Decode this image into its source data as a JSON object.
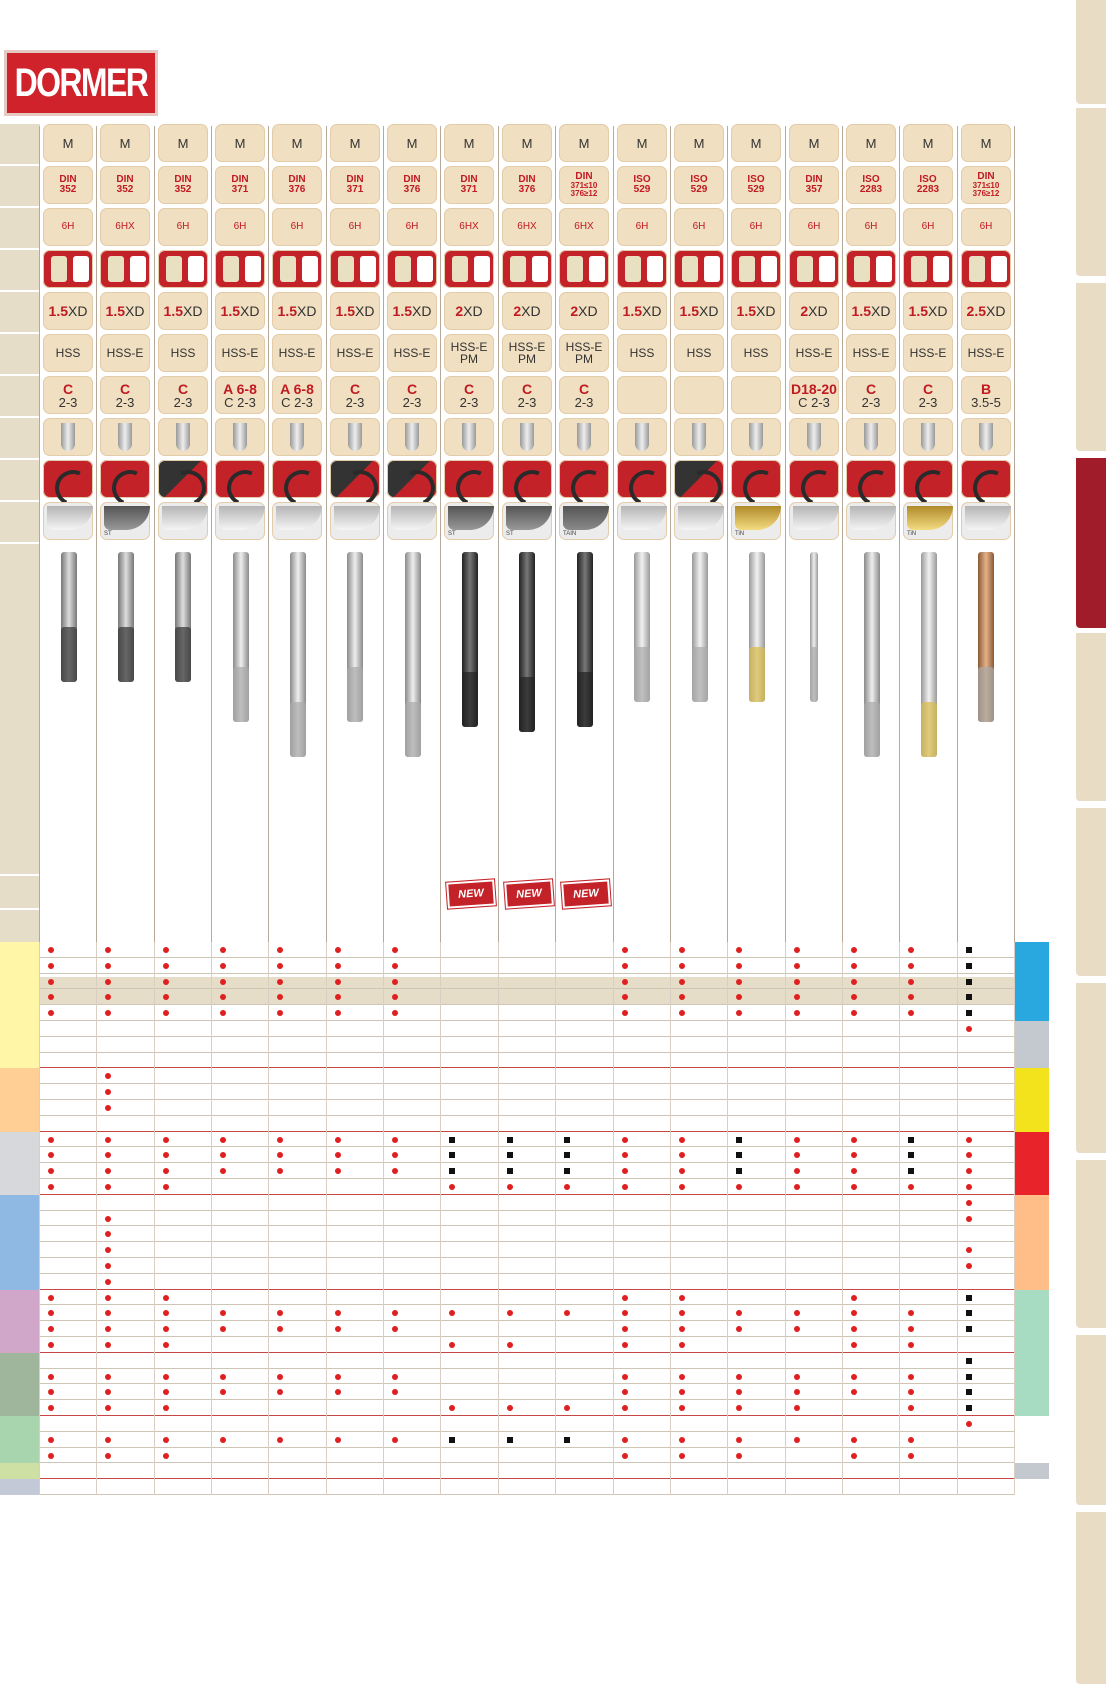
{
  "brand": {
    "logo_text": "DORMER",
    "color": "#d0222a"
  },
  "columns": [
    {
      "type": "M",
      "std": [
        "DIN",
        "352"
      ],
      "tol": "6H",
      "bore": "1.5",
      "mat": "HSS",
      "cls": [
        "C",
        "2-3"
      ],
      "dir": "R",
      "coat": "bright",
      "coat_label": "",
      "tap": "short-dark",
      "is_new": false
    },
    {
      "type": "M",
      "std": [
        "DIN",
        "352"
      ],
      "tol": "6HX",
      "bore": "1.5",
      "mat": "HSS-E",
      "cls": [
        "C",
        "2-3"
      ],
      "dir": "R",
      "coat": "dark",
      "coat_label": "ST",
      "tap": "short-dark",
      "is_new": false
    },
    {
      "type": "M",
      "std": [
        "DIN",
        "352"
      ],
      "tol": "6H",
      "bore": "1.5",
      "mat": "HSS",
      "cls": [
        "C",
        "2-3"
      ],
      "dir": "L",
      "coat": "bright",
      "coat_label": "",
      "tap": "short-dark",
      "is_new": false
    },
    {
      "type": "M",
      "std": [
        "DIN",
        "371"
      ],
      "tol": "6H",
      "bore": "1.5",
      "mat": "HSS-E",
      "cls": [
        "A 6-8",
        "C 2-3"
      ],
      "dir": "R",
      "coat": "bright",
      "coat_label": "",
      "tap": "long",
      "is_new": false
    },
    {
      "type": "M",
      "std": [
        "DIN",
        "376"
      ],
      "tol": "6H",
      "bore": "1.5",
      "mat": "HSS-E",
      "cls": [
        "A 6-8",
        "C 2-3"
      ],
      "dir": "R",
      "coat": "bright",
      "coat_label": "",
      "tap": "xlong",
      "is_new": false
    },
    {
      "type": "M",
      "std": [
        "DIN",
        "371"
      ],
      "tol": "6H",
      "bore": "1.5",
      "mat": "HSS-E",
      "cls": [
        "C",
        "2-3"
      ],
      "dir": "L",
      "coat": "bright",
      "coat_label": "",
      "tap": "long",
      "is_new": false
    },
    {
      "type": "M",
      "std": [
        "DIN",
        "376"
      ],
      "tol": "6H",
      "bore": "1.5",
      "mat": "HSS-E",
      "cls": [
        "C",
        "2-3"
      ],
      "dir": "L",
      "coat": "bright",
      "coat_label": "",
      "tap": "xlong",
      "is_new": false
    },
    {
      "type": "M",
      "std": [
        "DIN",
        "371"
      ],
      "tol": "6HX",
      "bore": "2",
      "mat": "HSS-E PM",
      "cls": [
        "C",
        "2-3"
      ],
      "dir": "R",
      "coat": "dark",
      "coat_label": "ST",
      "tap": "long-dark",
      "is_new": true
    },
    {
      "type": "M",
      "std": [
        "DIN",
        "376"
      ],
      "tol": "6HX",
      "bore": "2",
      "mat": "HSS-E PM",
      "cls": [
        "C",
        "2-3"
      ],
      "dir": "R",
      "coat": "dark",
      "coat_label": "ST",
      "tap": "xlong-dark",
      "is_new": true
    },
    {
      "type": "M",
      "std": [
        "DIN",
        "371≤10 376≥12"
      ],
      "tol": "6HX",
      "bore": "2",
      "mat": "HSS-E PM",
      "cls": [
        "C",
        "2-3"
      ],
      "dir": "R",
      "coat": "tain",
      "coat_label": "TAIN",
      "tap": "long-dark",
      "is_new": true
    },
    {
      "type": "M",
      "std": [
        "ISO",
        "529"
      ],
      "tol": "6H",
      "bore": "1.5",
      "mat": "HSS",
      "cls": [
        "",
        ""
      ],
      "dir": "R",
      "coat": "bright",
      "coat_label": "",
      "tap": "med",
      "is_new": false
    },
    {
      "type": "M",
      "std": [
        "ISO",
        "529"
      ],
      "tol": "6H",
      "bore": "1.5",
      "mat": "HSS",
      "cls": [
        "",
        ""
      ],
      "dir": "L",
      "coat": "bright",
      "coat_label": "",
      "tap": "med",
      "is_new": false
    },
    {
      "type": "M",
      "std": [
        "ISO",
        "529"
      ],
      "tol": "6H",
      "bore": "1.5",
      "mat": "HSS",
      "cls": [
        "",
        ""
      ],
      "dir": "R",
      "coat": "gold",
      "coat_label": "TiN",
      "tap": "med-gold",
      "is_new": false
    },
    {
      "type": "M",
      "std": [
        "DIN",
        "357"
      ],
      "tol": "6H",
      "bore": "2",
      "mat": "HSS-E",
      "cls": [
        "D18-20",
        "C 2-3"
      ],
      "dir": "R",
      "coat": "bright",
      "coat_label": "",
      "tap": "thin",
      "is_new": false
    },
    {
      "type": "M",
      "std": [
        "ISO",
        "2283"
      ],
      "tol": "6H",
      "bore": "1.5",
      "mat": "HSS-E",
      "cls": [
        "C",
        "2-3"
      ],
      "dir": "R",
      "coat": "bright",
      "coat_label": "",
      "tap": "xlong",
      "is_new": false
    },
    {
      "type": "M",
      "std": [
        "ISO",
        "2283"
      ],
      "tol": "6H",
      "bore": "1.5",
      "mat": "HSS-E",
      "cls": [
        "C",
        "2-3"
      ],
      "dir": "R",
      "coat": "gold",
      "coat_label": "TiN",
      "tap": "xlong-gold",
      "is_new": false
    },
    {
      "type": "M",
      "std": [
        "DIN",
        "371≤10 376≥12"
      ],
      "tol": "6H",
      "bore": "2.5",
      "mat": "HSS-E",
      "cls": [
        "B",
        "3.5-5"
      ],
      "dir": "R",
      "coat": "bright",
      "coat_label": "",
      "tap": "long-copper",
      "is_new": false
    }
  ],
  "header_row_tops": [
    124,
    166,
    208,
    250,
    292,
    334,
    376,
    418,
    460,
    502
  ],
  "new_badge_text": "NEW",
  "xd_unit": "XD",
  "matrix": [
    {
      "c": "#fff6a8",
      "r": "#29a7df",
      "m": "ooooooo---oooooos"
    },
    {
      "c": "#fff6a8",
      "r": "#29a7df",
      "m": "ooooooo---oooooos"
    },
    {
      "c": "#fff6a8",
      "r": "#29a7df",
      "m": "ooooooo---oooooos"
    },
    {
      "c": "#fff6a8",
      "r": "#29a7df",
      "m": "ooooooo---oooooos"
    },
    {
      "c": "#fff6a8",
      "r": "#29a7df",
      "m": "ooooooo---oooooos"
    },
    {
      "c": "#fff6a8",
      "r": "#c4c9cf",
      "m": "----------------o"
    },
    {
      "c": "#fff6a8",
      "r": "#c4c9cf",
      "m": "-----------------"
    },
    {
      "c": "#fff6a8",
      "r": "#c4c9cf",
      "m": "-----------------",
      "line": "red"
    },
    {
      "c": "#ffcf96",
      "r": "#f3e31d",
      "m": "-o---------------"
    },
    {
      "c": "#ffcf96",
      "r": "#f3e31d",
      "m": "-o---------------"
    },
    {
      "c": "#ffcf96",
      "r": "#f3e31d",
      "m": "-o---------------"
    },
    {
      "c": "#ffcf96",
      "r": "#f3e31d",
      "m": "-----------------",
      "line": "red"
    },
    {
      "c": "#d6d8dc",
      "r": "#e8242a",
      "m": "ooooooosssoosooso"
    },
    {
      "c": "#d6d8dc",
      "r": "#e8242a",
      "m": "ooooooosssoosooso"
    },
    {
      "c": "#d6d8dc",
      "r": "#e8242a",
      "m": "ooooooosssoosooso"
    },
    {
      "c": "#d6d8dc",
      "r": "#e8242a",
      "m": "ooo----oooooooooo",
      "line": "red"
    },
    {
      "c": "#8fb8e2",
      "r": "#ffbe88",
      "m": "----------------o"
    },
    {
      "c": "#8fb8e2",
      "r": "#ffbe88",
      "m": "-o--------------o"
    },
    {
      "c": "#8fb8e2",
      "r": "#ffbe88",
      "m": "-o---------------"
    },
    {
      "c": "#8fb8e2",
      "r": "#ffbe88",
      "m": "-o--------------o"
    },
    {
      "c": "#8fb8e2",
      "r": "#ffbe88",
      "m": "-o--------------o"
    },
    {
      "c": "#8fb8e2",
      "r": "#ffbe88",
      "m": "-o---------------",
      "line": "red"
    },
    {
      "c": "#d0a7c8",
      "r": "#a7dcc3",
      "m": "ooo-------oo--o-s"
    },
    {
      "c": "#d0a7c8",
      "r": "#a7dcc3",
      "m": "oooooooooooooooos"
    },
    {
      "c": "#d0a7c8",
      "r": "#a7dcc3",
      "m": "ooooooo---oooooos"
    },
    {
      "c": "#d0a7c8",
      "r": "#a7dcc3",
      "m": "ooo----oo-oo--oo-",
      "line": "red"
    },
    {
      "c": "#9fb69d",
      "r": "#a7dcc3",
      "m": "----------------s"
    },
    {
      "c": "#9fb69d",
      "r": "#a7dcc3",
      "m": "ooooooo---oooooos"
    },
    {
      "c": "#9fb69d",
      "r": "#a7dcc3",
      "m": "ooooooo---oooooos"
    },
    {
      "c": "#9fb69d",
      "r": "#a7dcc3",
      "m": "ooo----ooooooo-os",
      "line": "red"
    },
    {
      "c": "#a9d5ae",
      "r": "#ffffff",
      "m": "----------------o"
    },
    {
      "c": "#a9d5ae",
      "r": "#ffffff",
      "m": "ooooooosssoooooo-"
    },
    {
      "c": "#a9d5ae",
      "r": "#ffffff",
      "m": "ooo-------ooo-oo-"
    },
    {
      "c": "#cfe0a5",
      "r": "#c4c9cf",
      "m": "-----------------",
      "line": "red"
    },
    {
      "c": "#c4c9d8",
      "r": "#ffffff",
      "m": "-----------------"
    }
  ]
}
